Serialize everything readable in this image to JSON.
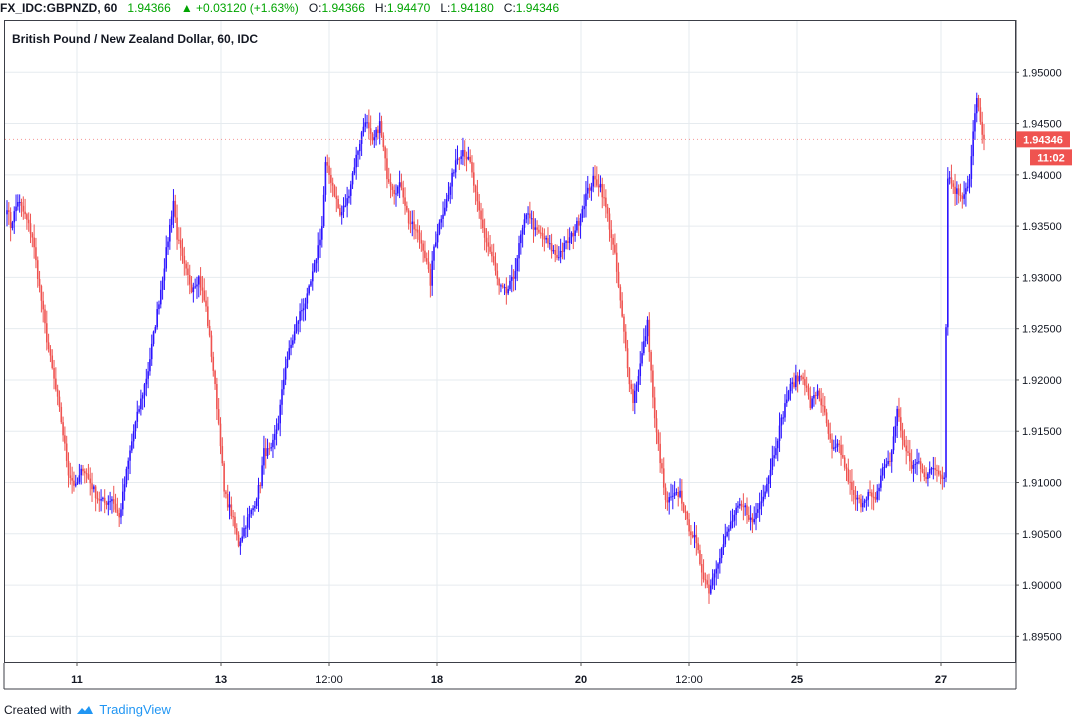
{
  "header": {
    "symbol": "FX_IDC:GBPNZD, 60",
    "last": "1.94366",
    "change_arrow": "▲",
    "change": "+0.03120 (+1.63%)",
    "o_label": "O:",
    "o_value": "1.94366",
    "h_label": "H:",
    "h_value": "1.94470",
    "l_label": "L:",
    "l_value": "1.94180",
    "c_label": "C:",
    "c_value": "1.94346"
  },
  "colors": {
    "up_candle": "#2b14ff",
    "down_candle": "#ef5350",
    "grid": "#e6ebef",
    "axis_text": "#131722",
    "positive_text": "#00a400"
  },
  "footer": {
    "created_with": "Created with",
    "brand": "TradingView",
    "brand_icon": "tradingview-cloud-icon"
  },
  "chart_data": {
    "type": "candlestick",
    "title": "British Pound / New Zealand Dollar, 60, IDC",
    "ylim": [
      1.8925,
      1.955
    ],
    "y_ticks": [
      "1.95000",
      "1.94500",
      "1.94000",
      "1.93500",
      "1.93000",
      "1.92500",
      "1.92000",
      "1.91500",
      "1.91000",
      "1.90500",
      "1.90000",
      "1.89500"
    ],
    "x_ticks": [
      "11",
      "13",
      "12:00",
      "18",
      "20",
      "12:00",
      "25",
      "27"
    ],
    "last_price_label": "1.94346",
    "countdown_label": "11:02",
    "grid": true,
    "path_keypoints": [
      [
        0,
        1.937
      ],
      [
        2,
        1.935
      ],
      [
        6,
        1.9375
      ],
      [
        10,
        1.936
      ],
      [
        14,
        1.934
      ],
      [
        18,
        1.929
      ],
      [
        22,
        1.924
      ],
      [
        26,
        1.92
      ],
      [
        30,
        1.916
      ],
      [
        34,
        1.911
      ],
      [
        38,
        1.9095
      ],
      [
        42,
        1.9115
      ],
      [
        46,
        1.91
      ],
      [
        50,
        1.9085
      ],
      [
        54,
        1.908
      ],
      [
        58,
        1.9085
      ],
      [
        62,
        1.9065
      ],
      [
        66,
        1.911
      ],
      [
        70,
        1.915
      ],
      [
        74,
        1.918
      ],
      [
        78,
        1.921
      ],
      [
        82,
        1.9255
      ],
      [
        86,
        1.93
      ],
      [
        90,
        1.935
      ],
      [
        92,
        1.9375
      ],
      [
        94,
        1.934
      ],
      [
        98,
        1.931
      ],
      [
        102,
        1.929
      ],
      [
        106,
        1.93
      ],
      [
        110,
        1.927
      ],
      [
        114,
        1.921
      ],
      [
        118,
        1.914
      ],
      [
        120,
        1.909
      ],
      [
        124,
        1.907
      ],
      [
        128,
        1.904
      ],
      [
        132,
        1.906
      ],
      [
        136,
        1.9075
      ],
      [
        140,
        1.91
      ],
      [
        142,
        1.913
      ],
      [
        146,
        1.913
      ],
      [
        150,
        1.916
      ],
      [
        154,
        1.9215
      ],
      [
        158,
        1.924
      ],
      [
        162,
        1.9265
      ],
      [
        166,
        1.928
      ],
      [
        170,
        1.931
      ],
      [
        174,
        1.935
      ],
      [
        176,
        1.941
      ],
      [
        180,
        1.939
      ],
      [
        184,
        1.936
      ],
      [
        188,
        1.9375
      ],
      [
        192,
        1.941
      ],
      [
        196,
        1.944
      ],
      [
        198,
        1.9455
      ],
      [
        202,
        1.943
      ],
      [
        206,
        1.945
      ],
      [
        210,
        1.94
      ],
      [
        214,
        1.9385
      ],
      [
        218,
        1.939
      ],
      [
        222,
        1.9355
      ],
      [
        226,
        1.9345
      ],
      [
        230,
        1.933
      ],
      [
        234,
        1.9295
      ],
      [
        236,
        1.933
      ],
      [
        240,
        1.936
      ],
      [
        244,
        1.938
      ],
      [
        248,
        1.9415
      ],
      [
        252,
        1.9425
      ],
      [
        256,
        1.941
      ],
      [
        260,
        1.937
      ],
      [
        264,
        1.934
      ],
      [
        268,
        1.932
      ],
      [
        272,
        1.929
      ],
      [
        276,
        1.9285
      ],
      [
        280,
        1.93
      ],
      [
        284,
        1.934
      ],
      [
        288,
        1.9365
      ],
      [
        292,
        1.9345
      ],
      [
        296,
        1.934
      ],
      [
        300,
        1.933
      ],
      [
        304,
        1.932
      ],
      [
        308,
        1.933
      ],
      [
        312,
        1.934
      ],
      [
        316,
        1.9355
      ],
      [
        320,
        1.938
      ],
      [
        324,
        1.9395
      ],
      [
        328,
        1.939
      ],
      [
        332,
        1.936
      ],
      [
        336,
        1.932
      ],
      [
        340,
        1.926
      ],
      [
        344,
        1.92
      ],
      [
        346,
        1.918
      ],
      [
        350,
        1.9215
      ],
      [
        354,
        1.9255
      ],
      [
        358,
        1.916
      ],
      [
        362,
        1.911
      ],
      [
        364,
        1.908
      ],
      [
        368,
        1.9085
      ],
      [
        372,
        1.909
      ],
      [
        376,
        1.906
      ],
      [
        380,
        1.9045
      ],
      [
        384,
        1.9015
      ],
      [
        388,
        1.8995
      ],
      [
        392,
        1.902
      ],
      [
        396,
        1.904
      ],
      [
        400,
        1.906
      ],
      [
        404,
        1.9075
      ],
      [
        408,
        1.9075
      ],
      [
        412,
        1.906
      ],
      [
        416,
        1.908
      ],
      [
        420,
        1.91
      ],
      [
        424,
        1.913
      ],
      [
        428,
        1.916
      ],
      [
        432,
        1.919
      ],
      [
        436,
        1.92
      ],
      [
        440,
        1.9205
      ],
      [
        444,
        1.9175
      ],
      [
        448,
        1.919
      ],
      [
        452,
        1.9165
      ],
      [
        456,
        1.913
      ],
      [
        460,
        1.9135
      ],
      [
        464,
        1.911
      ],
      [
        468,
        1.9085
      ],
      [
        472,
        1.908
      ],
      [
        476,
        1.909
      ],
      [
        480,
        1.908
      ],
      [
        484,
        1.9115
      ],
      [
        488,
        1.912
      ],
      [
        492,
        1.917
      ],
      [
        496,
        1.9135
      ],
      [
        500,
        1.9115
      ],
      [
        504,
        1.912
      ],
      [
        508,
        1.9105
      ],
      [
        512,
        1.9115
      ],
      [
        516,
        1.911
      ],
      [
        518,
        1.9105
      ],
      [
        520,
        1.94
      ],
      [
        524,
        1.9385
      ],
      [
        528,
        1.938
      ],
      [
        532,
        1.9395
      ],
      [
        534,
        1.944
      ],
      [
        536,
        1.9475
      ],
      [
        538,
        1.945
      ],
      [
        540,
        1.9435
      ]
    ]
  }
}
